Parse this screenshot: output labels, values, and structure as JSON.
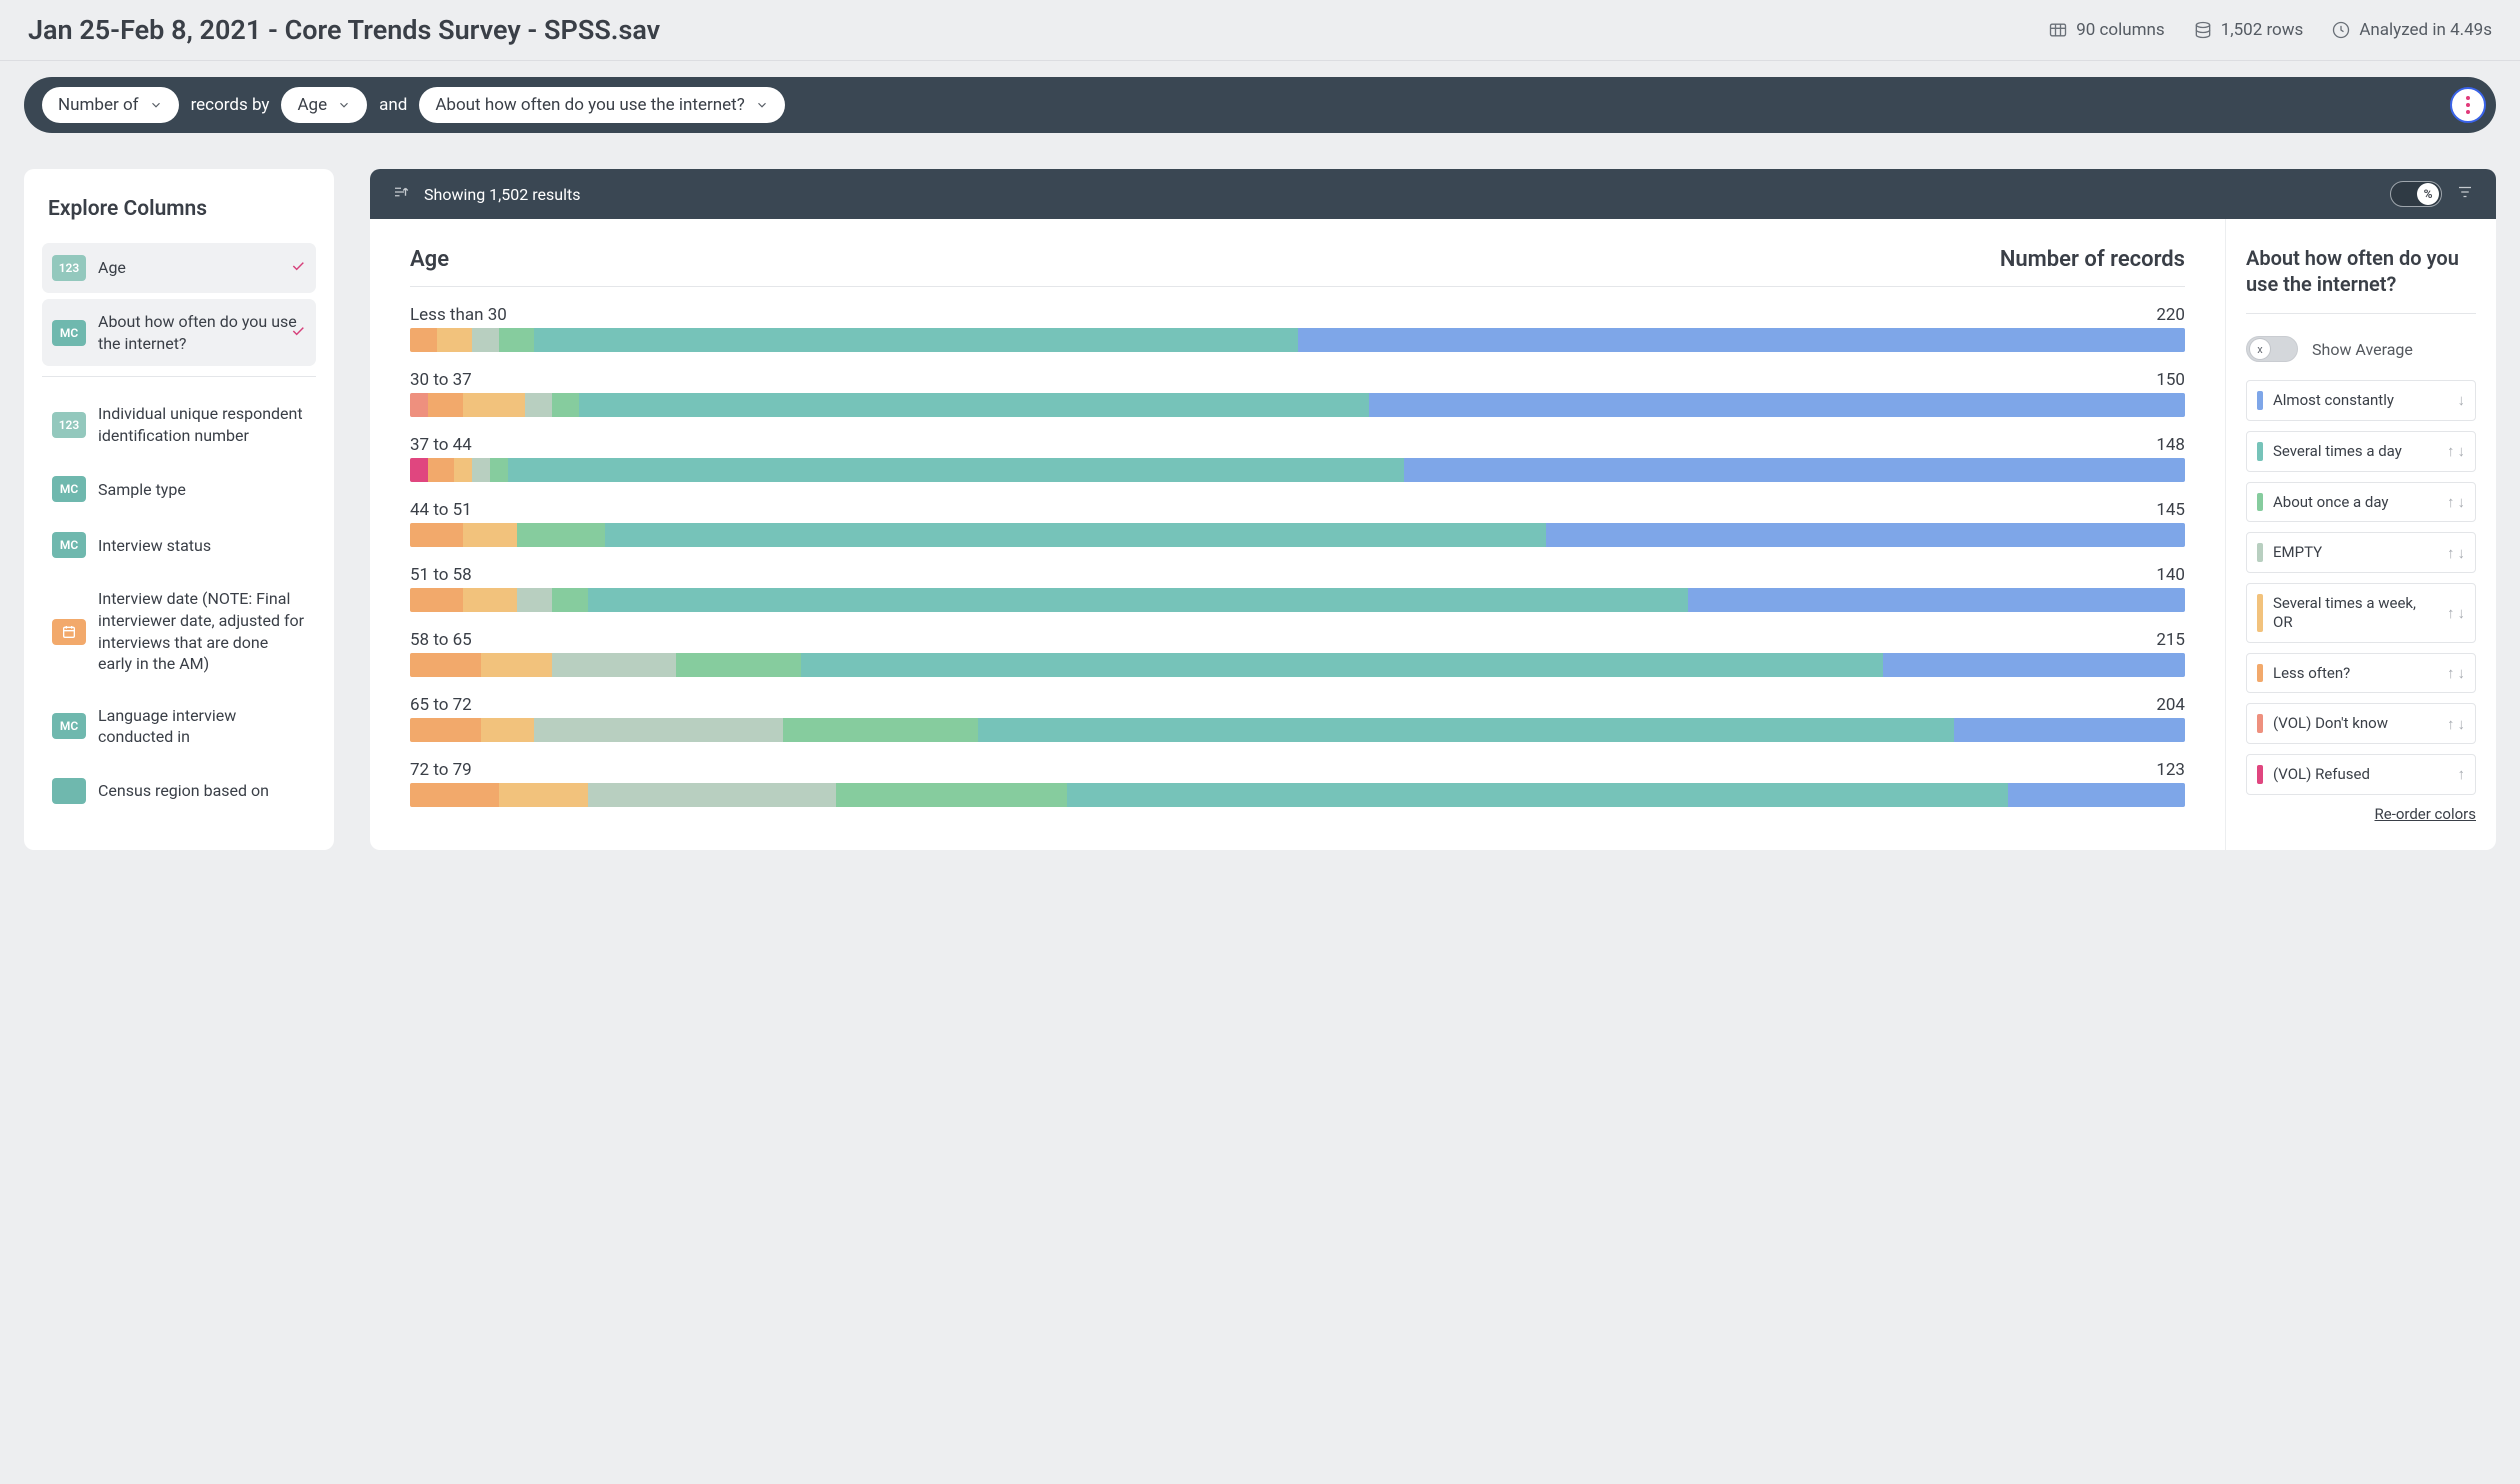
{
  "header": {
    "title": "Jan 25-Feb 8, 2021 - Core Trends Survey - SPSS.sav",
    "columns": "90 columns",
    "rows": "1,502 rows",
    "analyzed": "Analyzed in 4.49s"
  },
  "query": {
    "measure": "Number of",
    "records_by": "records by",
    "dim1": "Age",
    "and": "and",
    "dim2": "About how often do you use the internet?"
  },
  "sidebar": {
    "title": "Explore Columns",
    "selected": [
      {
        "badge": "123",
        "badge_type": "123",
        "label": "Age"
      },
      {
        "badge": "MC",
        "badge_type": "mc",
        "label": "About how often do you use the internet?"
      }
    ],
    "others": [
      {
        "badge": "123",
        "badge_type": "123",
        "label": "Individual unique respondent identification number"
      },
      {
        "badge": "MC",
        "badge_type": "mc",
        "label": "Sample type"
      },
      {
        "badge": "MC",
        "badge_type": "mc",
        "label": "Interview status"
      },
      {
        "badge": "",
        "badge_type": "date",
        "label": "Interview date (NOTE: Final interviewer date, adjusted for interviews that are done early in the AM)"
      },
      {
        "badge": "MC",
        "badge_type": "mc",
        "label": "Language interview conducted in"
      },
      {
        "badge": "",
        "badge_type": "mc",
        "label": "Census region based on"
      }
    ]
  },
  "results_bar": {
    "showing": "Showing 1,502 results",
    "pct_symbol": "%"
  },
  "chart": {
    "col_left": "Age",
    "col_right": "Number of records",
    "colors": {
      "refused": "#e0467f",
      "dontknow": "#ee907e",
      "lessoften": "#f2a96b",
      "severalweek": "#f2c27c",
      "empty": "#b8cfc0",
      "onceday": "#86cc9e",
      "severalday": "#76c3b9",
      "constantly": "#7ea6e8"
    },
    "rows": [
      {
        "label": "Less than 30",
        "value": "220",
        "segments": [
          {
            "c": "lessoften",
            "p": 1.5
          },
          {
            "c": "severalweek",
            "p": 2
          },
          {
            "c": "empty",
            "p": 1.5
          },
          {
            "c": "onceday",
            "p": 2
          },
          {
            "c": "severalday",
            "p": 43
          },
          {
            "c": "constantly",
            "p": 50
          }
        ]
      },
      {
        "label": "30 to 37",
        "value": "150",
        "segments": [
          {
            "c": "dontknow",
            "p": 1
          },
          {
            "c": "lessoften",
            "p": 2
          },
          {
            "c": "severalweek",
            "p": 3.5
          },
          {
            "c": "empty",
            "p": 1.5
          },
          {
            "c": "onceday",
            "p": 1.5
          },
          {
            "c": "severalday",
            "p": 44.5
          },
          {
            "c": "constantly",
            "p": 46
          }
        ]
      },
      {
        "label": "37 to 44",
        "value": "148",
        "segments": [
          {
            "c": "refused",
            "p": 1
          },
          {
            "c": "lessoften",
            "p": 1.5
          },
          {
            "c": "severalweek",
            "p": 1
          },
          {
            "c": "empty",
            "p": 1
          },
          {
            "c": "onceday",
            "p": 1
          },
          {
            "c": "severalday",
            "p": 50.5
          },
          {
            "c": "constantly",
            "p": 44
          }
        ]
      },
      {
        "label": "44 to 51",
        "value": "145",
        "segments": [
          {
            "c": "lessoften",
            "p": 3
          },
          {
            "c": "severalweek",
            "p": 3
          },
          {
            "c": "onceday",
            "p": 5
          },
          {
            "c": "severalday",
            "p": 53
          },
          {
            "c": "constantly",
            "p": 36
          }
        ]
      },
      {
        "label": "51 to 58",
        "value": "140",
        "segments": [
          {
            "c": "lessoften",
            "p": 3
          },
          {
            "c": "severalweek",
            "p": 3
          },
          {
            "c": "empty",
            "p": 2
          },
          {
            "c": "onceday",
            "p": 2
          },
          {
            "c": "severalday",
            "p": 62
          },
          {
            "c": "constantly",
            "p": 28
          }
        ]
      },
      {
        "label": "58 to 65",
        "value": "215",
        "segments": [
          {
            "c": "lessoften",
            "p": 4
          },
          {
            "c": "severalweek",
            "p": 4
          },
          {
            "c": "empty",
            "p": 7
          },
          {
            "c": "onceday",
            "p": 7
          },
          {
            "c": "severalday",
            "p": 61
          },
          {
            "c": "constantly",
            "p": 17
          }
        ]
      },
      {
        "label": "65 to 72",
        "value": "204",
        "segments": [
          {
            "c": "lessoften",
            "p": 4
          },
          {
            "c": "severalweek",
            "p": 3
          },
          {
            "c": "empty",
            "p": 14
          },
          {
            "c": "onceday",
            "p": 11
          },
          {
            "c": "severalday",
            "p": 55
          },
          {
            "c": "constantly",
            "p": 13
          }
        ]
      },
      {
        "label": "72 to 79",
        "value": "123",
        "segments": [
          {
            "c": "lessoften",
            "p": 5
          },
          {
            "c": "severalweek",
            "p": 5
          },
          {
            "c": "empty",
            "p": 14
          },
          {
            "c": "onceday",
            "p": 13
          },
          {
            "c": "severalday",
            "p": 53
          },
          {
            "c": "constantly",
            "p": 10
          }
        ]
      }
    ]
  },
  "legend": {
    "title": "About how often do you use the internet?",
    "avg_label": "Show Average",
    "avg_thumb": "x",
    "reorder": "Re-order colors",
    "items": [
      {
        "c": "constantly",
        "label": "Almost constantly",
        "arrows": "down"
      },
      {
        "c": "severalday",
        "label": "Several times a day",
        "arrows": "both"
      },
      {
        "c": "onceday",
        "label": "About once a day",
        "arrows": "both"
      },
      {
        "c": "empty",
        "label": "EMPTY",
        "arrows": "both"
      },
      {
        "c": "severalweek",
        "label": "Several times a week, OR",
        "arrows": "both"
      },
      {
        "c": "lessoften",
        "label": "Less often?",
        "arrows": "both"
      },
      {
        "c": "dontknow",
        "label": "(VOL) Don't know",
        "arrows": "both"
      },
      {
        "c": "refused",
        "label": "(VOL) Refused",
        "arrows": "up"
      }
    ]
  }
}
